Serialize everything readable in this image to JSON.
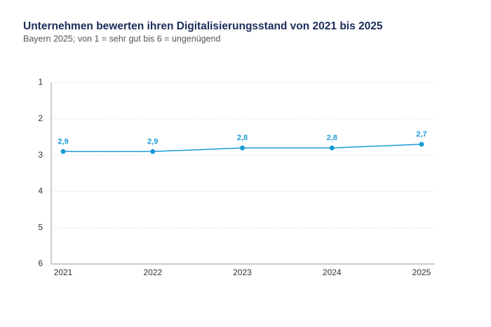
{
  "chart_data": {
    "type": "line",
    "title": "Unternehmen bewerten ihren Digitalisierungsstand von 2021 bis 2025",
    "subtitle": "Bayern 2025; von 1 = sehr gut bis 6 = ungenügend",
    "categories": [
      "2021",
      "2022",
      "2023",
      "2024",
      "2025"
    ],
    "values": [
      2.9,
      2.9,
      2.8,
      2.8,
      2.7
    ],
    "value_labels": [
      "2,9",
      "2,9",
      "2,8",
      "2,8",
      "2,7"
    ],
    "color": "#1a9ad6",
    "ylim": [
      1,
      6
    ],
    "yticks": [
      1,
      2,
      3,
      4,
      5,
      6
    ],
    "y_inverted": true,
    "grid": true
  }
}
